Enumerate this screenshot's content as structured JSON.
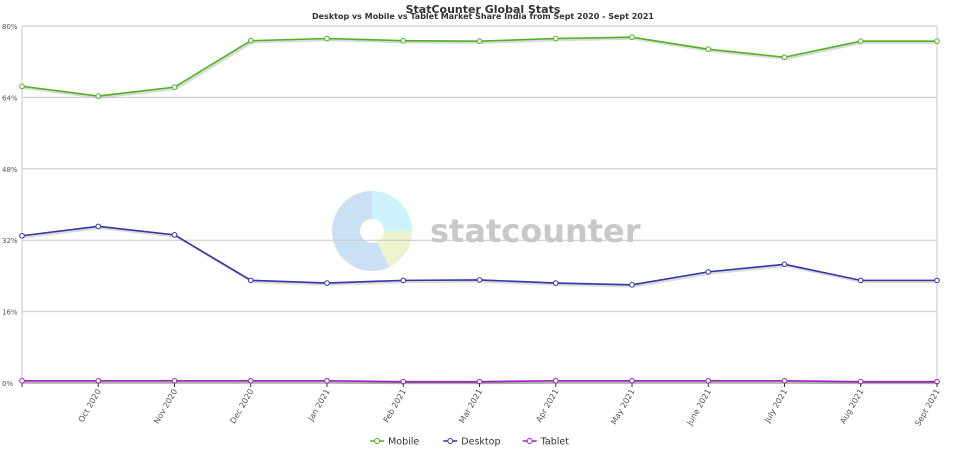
{
  "chart_data": {
    "type": "line",
    "title": "StatCounter Global Stats",
    "subtitle": "Desktop vs Mobile vs Tablet Market Share India from Sept 2020 - Sept 2021",
    "xlabel": "",
    "ylabel": "",
    "categories": [
      "Sept 2020",
      "Oct 2020",
      "Nov 2020",
      "Dec 2020",
      "Jan 2021",
      "Feb 2021",
      "Mar 2021",
      "Apr 2021",
      "May 2021",
      "June 2021",
      "July 2021",
      "Aug 2021",
      "Sept 2021"
    ],
    "tick_labels": [
      "",
      "Oct 2020",
      "Nov 2020",
      "Dec 2020",
      "Jan 2021",
      "Feb 2021",
      "Mar 2021",
      "Apr 2021",
      "May 2021",
      "June 2021",
      "July 2021",
      "Aug 2021",
      "Sept 2021"
    ],
    "ylim": [
      0,
      80
    ],
    "yticks": [
      0,
      16,
      32,
      48,
      64,
      80
    ],
    "ytick_labels": [
      "0%",
      "16%",
      "32%",
      "48%",
      "64%",
      "80%"
    ],
    "grid": true,
    "legend": "bottom-center",
    "watermark": "statcounter",
    "series": [
      {
        "name": "Mobile",
        "color": "#4cb31f",
        "values": [
          66.5,
          64.3,
          66.3,
          76.7,
          77.2,
          76.7,
          76.6,
          77.2,
          77.5,
          74.8,
          73.0,
          76.6,
          76.6
        ]
      },
      {
        "name": "Desktop",
        "color": "#3333aa",
        "values": [
          33.0,
          35.1,
          33.2,
          23.0,
          22.4,
          23.0,
          23.1,
          22.4,
          22.0,
          24.9,
          26.6,
          23.0,
          23.0
        ]
      },
      {
        "name": "Tablet",
        "color": "#a020c0",
        "values": [
          0.5,
          0.5,
          0.5,
          0.5,
          0.5,
          0.3,
          0.3,
          0.5,
          0.5,
          0.5,
          0.5,
          0.3,
          0.3
        ]
      }
    ]
  }
}
